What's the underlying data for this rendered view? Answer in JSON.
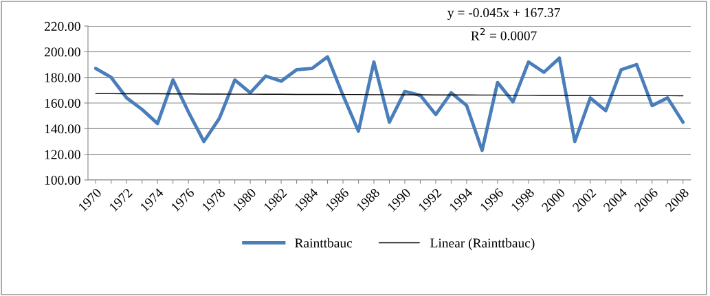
{
  "chart_data": {
    "type": "line",
    "categories": [
      "1970",
      null,
      "1972",
      null,
      "1974",
      null,
      "1976",
      null,
      "1978",
      null,
      "1980",
      null,
      "1982",
      null,
      "1984",
      null,
      "1986",
      null,
      "1988",
      null,
      "1990",
      null,
      "1992",
      null,
      "1994",
      null,
      "1996",
      null,
      "1998",
      null,
      "2000",
      null,
      "2002",
      null,
      "2004",
      null,
      "2006",
      null,
      "2008"
    ],
    "series": [
      {
        "name": "Rainttbauc",
        "color": "#4a7ebb",
        "values": [
          187,
          180,
          164,
          155,
          144,
          178,
          153,
          130,
          148,
          178,
          168,
          181,
          177,
          186,
          187,
          196,
          166,
          138,
          192,
          145,
          169,
          166,
          151,
          168,
          158,
          123,
          176,
          161,
          192,
          184,
          195,
          130,
          164,
          154,
          186,
          190,
          158,
          164,
          145
        ]
      },
      {
        "name": "Linear (Rainttbauc)",
        "color": "#000000",
        "values": [
          167.3,
          167.3,
          167.2,
          167.2,
          167.2,
          167.1,
          167.1,
          167.0,
          167.0,
          166.9,
          166.9,
          166.8,
          166.8,
          166.7,
          166.7,
          166.7,
          166.6,
          166.6,
          166.5,
          166.5,
          166.4,
          166.4,
          166.3,
          166.3,
          166.3,
          166.2,
          166.2,
          166.1,
          166.1,
          166.0,
          166.0,
          165.9,
          165.9,
          165.8,
          165.8,
          165.8,
          165.7,
          165.7,
          165.6
        ]
      }
    ],
    "ylim": [
      100,
      220
    ],
    "yticks": [
      {
        "value": 100,
        "label": "100.00"
      },
      {
        "value": 120,
        "label": "120.00"
      },
      {
        "value": 140,
        "label": "140.00"
      },
      {
        "value": 160,
        "label": "160.00"
      },
      {
        "value": 180,
        "label": "180.00"
      },
      {
        "value": 200,
        "label": "200.00"
      },
      {
        "value": 220,
        "label": "220.00"
      }
    ],
    "grid": "y",
    "legend": "bottom",
    "annotations": [
      "y = -0.045x + 167.37",
      "R$^{2}$ = 0.0007"
    ]
  }
}
